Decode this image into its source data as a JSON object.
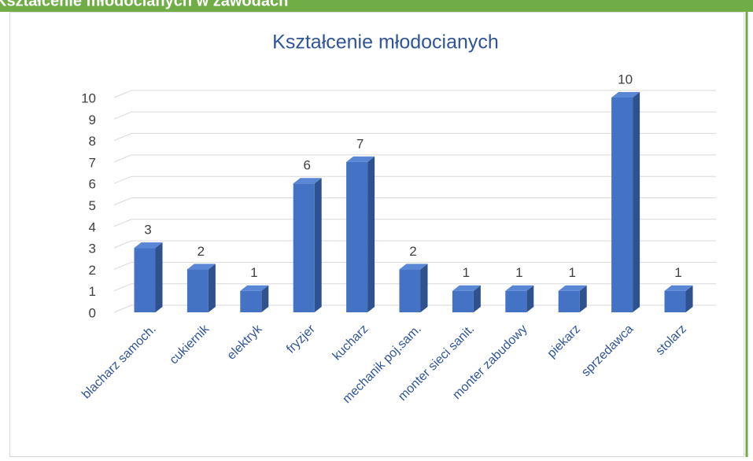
{
  "header": {
    "title": "Kształcenie młodocianych w zawodach"
  },
  "chart_data": {
    "type": "bar",
    "title": "Kształcenie młodocianych",
    "categories": [
      "blacharz samoch.",
      "cukiernik",
      "elektryk",
      "fryzjer",
      "kucharz",
      "mechanik poj.sam.",
      "monter sieci sanit.",
      "monter zabudowy",
      "piekarz",
      "sprzedawca",
      "stolarz"
    ],
    "values": [
      3,
      2,
      1,
      6,
      7,
      2,
      1,
      1,
      1,
      10,
      1
    ],
    "color": "#4472c4",
    "ylim": [
      0,
      10
    ],
    "yticks": [
      0,
      1,
      2,
      3,
      4,
      5,
      6,
      7,
      8,
      9,
      10
    ],
    "grid": true
  }
}
